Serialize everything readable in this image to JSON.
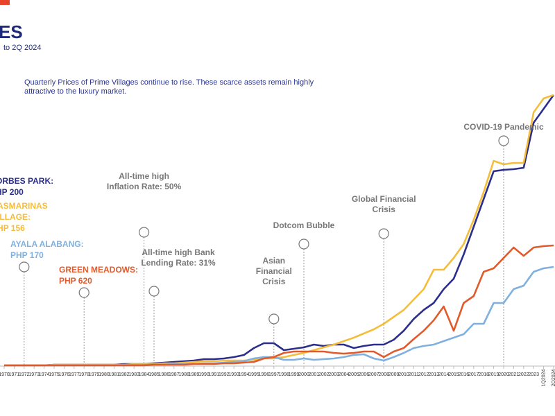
{
  "chart_data": {
    "type": "line",
    "title": "ES",
    "subtitle": "to 2Q 2024",
    "description": [
      "Quarterly Prices of Prime Villages continue to rise. These scarce assets remain highly",
      "attractive to the luxury market."
    ],
    "categories": [
      "1970",
      "1971",
      "1972",
      "1973",
      "1974",
      "1975",
      "1976",
      "1977",
      "1978",
      "1979",
      "1980",
      "1981",
      "1982",
      "1983",
      "1984",
      "1985",
      "1986",
      "1987",
      "1988",
      "1989",
      "1990",
      "1991",
      "1992",
      "1993",
      "1994",
      "1995",
      "1996",
      "1997",
      "1998",
      "1999",
      "2000",
      "2001",
      "2002",
      "2003",
      "2004",
      "2005",
      "2006",
      "2007",
      "2008",
      "2009",
      "2010",
      "2011",
      "2012",
      "2013",
      "2014",
      "2015",
      "2016",
      "2017",
      "2018",
      "2019",
      "2020",
      "2021",
      "2022",
      "2023",
      "1Q2024",
      "2Q2024"
    ],
    "ylim": [
      0,
      400
    ],
    "series": [
      {
        "name": "ORBES PARK:",
        "label_lines": [
          "HP 200"
        ],
        "color": "#2b2e8a",
        "values": [
          0,
          0,
          0,
          0,
          0,
          1,
          1,
          1,
          1,
          1,
          1,
          1,
          2,
          2,
          2,
          3,
          4,
          5,
          6,
          7,
          9,
          9,
          10,
          12,
          15,
          25,
          32,
          32,
          22,
          24,
          26,
          30,
          28,
          30,
          30,
          25,
          28,
          30,
          30,
          37,
          50,
          67,
          80,
          90,
          110,
          125,
          160,
          200,
          240,
          280,
          282,
          283,
          285,
          350,
          370,
          390
        ]
      },
      {
        "name": "ASMARINAS",
        "label_lines": [
          "ILLAGE:",
          "HP 156"
        ],
        "color": "#f5bd3a",
        "values": [
          0,
          0,
          0,
          0,
          0,
          1,
          1,
          1,
          1,
          1,
          1,
          1,
          1,
          2,
          2,
          2,
          3,
          3,
          4,
          5,
          6,
          6,
          7,
          7,
          7,
          8,
          10,
          10,
          12,
          15,
          18,
          22,
          26,
          30,
          35,
          40,
          46,
          52,
          60,
          70,
          80,
          95,
          110,
          138,
          138,
          155,
          175,
          210,
          250,
          295,
          290,
          292,
          292,
          365,
          385,
          390
        ]
      },
      {
        "name": "AYALA ALABANG:",
        "label_lines": [
          "PHP 170"
        ],
        "color": "#7fb0de",
        "values": [
          0,
          0,
          0,
          0,
          0,
          0,
          0,
          0,
          0,
          0,
          0,
          0,
          1,
          1,
          1,
          1,
          1,
          2,
          2,
          2,
          3,
          3,
          4,
          5,
          6,
          10,
          12,
          12,
          8,
          8,
          10,
          8,
          9,
          10,
          12,
          15,
          16,
          10,
          7,
          12,
          18,
          25,
          28,
          30,
          35,
          40,
          45,
          60,
          60,
          90,
          90,
          110,
          115,
          135,
          140,
          142
        ]
      },
      {
        "name": "GREEN MEADOWS:",
        "label_lines": [
          "PHP 620"
        ],
        "color": "#e05a2b",
        "values": [
          0,
          0,
          0,
          0,
          0,
          0,
          0,
          0,
          0,
          0,
          0,
          0,
          0,
          0,
          0,
          1,
          1,
          1,
          1,
          2,
          2,
          2,
          3,
          3,
          4,
          5,
          10,
          12,
          18,
          20,
          20,
          20,
          20,
          18,
          17,
          18,
          20,
          20,
          12,
          20,
          25,
          38,
          50,
          65,
          85,
          50,
          90,
          100,
          135,
          140,
          155,
          170,
          158,
          170,
          172,
          173
        ]
      }
    ],
    "annotations": [
      {
        "lines": [
          "All-time high",
          "Inflation Rate: 50%"
        ]
      },
      {
        "lines": [
          "All-time high Bank",
          "Lending Rate: 31%"
        ]
      },
      {
        "lines": [
          "Asian",
          "Financial",
          "Crisis"
        ]
      },
      {
        "lines": [
          "Dotcom Bubble"
        ]
      },
      {
        "lines": [
          "Global Financial",
          "Crisis"
        ]
      },
      {
        "lines": [
          "COVID-19 Pandemic"
        ]
      }
    ]
  }
}
